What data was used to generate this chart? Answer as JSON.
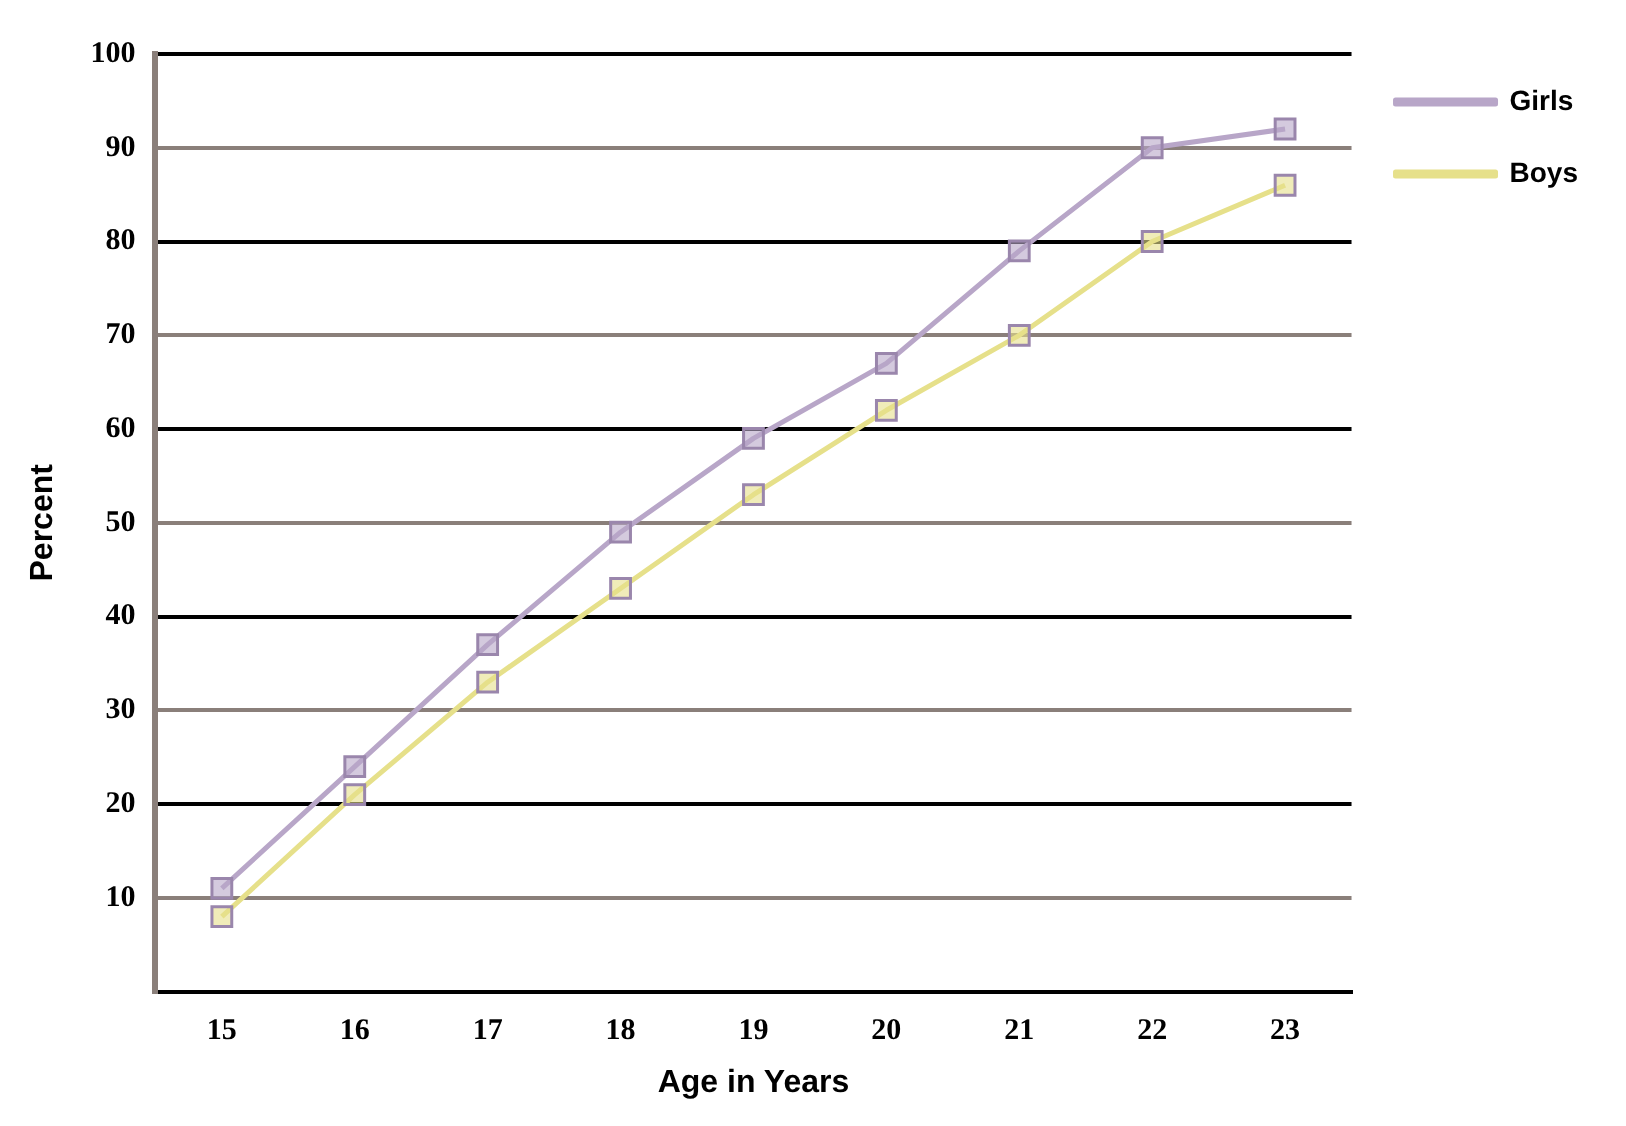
{
  "chart_data": {
    "type": "line",
    "xlabel": "Age in Years",
    "ylabel": "Percent",
    "categories": [
      "15",
      "16",
      "17",
      "18",
      "19",
      "20",
      "21",
      "22",
      "23"
    ],
    "series": [
      {
        "name": "Girls",
        "color": "#b8a6c8",
        "values": [
          11,
          24,
          37,
          49,
          59,
          67,
          79,
          90,
          92
        ]
      },
      {
        "name": "Boys",
        "color": "#e6e08a",
        "values": [
          8,
          21,
          33,
          43,
          53,
          62,
          70,
          80,
          86
        ]
      }
    ],
    "ylim": [
      0,
      100
    ],
    "yticks": [
      {
        "value": 0,
        "label": null
      },
      10,
      20,
      30,
      40,
      50,
      60,
      70,
      80,
      90,
      100
    ],
    "grid": "y",
    "legend": "top right",
    "marker": "square",
    "line_style": "solid"
  }
}
